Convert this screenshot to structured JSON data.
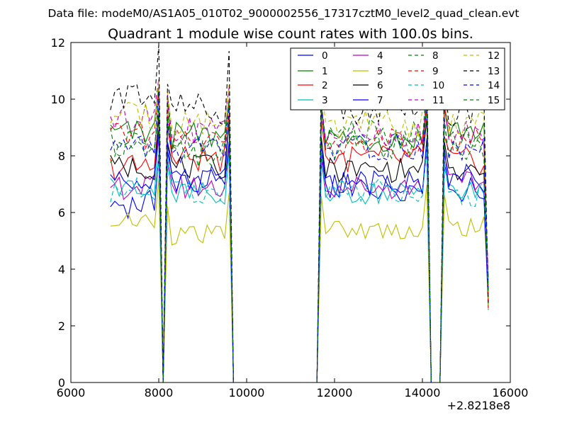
{
  "page": {
    "suptitle": "Data file: modeM0/AS1A05_010T02_9000002556_17317cztM0_level2_quad_clean.evt"
  },
  "chart_data": {
    "type": "line",
    "title": "Quadrant 1 module wise count rates with 100.0s bins.",
    "xlabel": "",
    "ylabel": "",
    "x_offset_label": "+2.8218e8",
    "xlim": [
      6000,
      16000
    ],
    "ylim": [
      0,
      12
    ],
    "x_ticks": [
      6000,
      8000,
      10000,
      12000,
      14000,
      16000
    ],
    "y_ticks": [
      0,
      2,
      4,
      6,
      8,
      10,
      12
    ],
    "x_tick_labels": [
      "6000",
      "8000",
      "10000",
      "12000",
      "14000",
      "16000"
    ],
    "y_tick_labels": [
      "0",
      "2",
      "4",
      "6",
      "8",
      "10",
      "12"
    ],
    "grid": false,
    "legend_position": "top-right",
    "time_segments": [
      {
        "start": 6900,
        "end": 7900
      },
      {
        "start": 8300,
        "end": 9500
      },
      {
        "start": 11800,
        "end": 14000
      },
      {
        "start": 14600,
        "end": 15400
      }
    ],
    "series": [
      {
        "name": "0",
        "color": "#0000ff",
        "dash": "solid",
        "levels": [
          6.3,
          7.2,
          6.9,
          6.8
        ],
        "variation": 0.25
      },
      {
        "name": "1",
        "color": "#008000",
        "dash": "solid",
        "levels": [
          8.8,
          8.7,
          8.6,
          8.9
        ],
        "variation": 0.25
      },
      {
        "name": "2",
        "color": "#ff0000",
        "dash": "solid",
        "levels": [
          7.6,
          7.9,
          7.9,
          7.8
        ],
        "variation": 0.25
      },
      {
        "name": "3",
        "color": "#00bfbf",
        "dash": "solid",
        "levels": [
          6.9,
          6.7,
          6.7,
          6.7
        ],
        "variation": 0.22
      },
      {
        "name": "4",
        "color": "#bf00bf",
        "dash": "solid",
        "levels": [
          6.9,
          6.9,
          6.9,
          7.0
        ],
        "variation": 0.22
      },
      {
        "name": "5",
        "color": "#bfbf00",
        "dash": "solid",
        "levels": [
          5.7,
          5.2,
          5.4,
          5.5
        ],
        "variation": 0.18
      },
      {
        "name": "6",
        "color": "#000000",
        "dash": "solid",
        "levels": [
          7.6,
          7.6,
          7.5,
          7.4
        ],
        "variation": 0.22
      },
      {
        "name": "7",
        "color": "#0000ff",
        "dash": "solid",
        "levels": [
          7.3,
          7.1,
          7.0,
          7.2
        ],
        "variation": 0.25
      },
      {
        "name": "8",
        "color": "#008000",
        "dash": "dashed",
        "levels": [
          8.5,
          8.4,
          8.8,
          8.7
        ],
        "variation": 0.25
      },
      {
        "name": "9",
        "color": "#ff0000",
        "dash": "dashed",
        "levels": [
          8.7,
          8.5,
          8.5,
          8.6
        ],
        "variation": 0.25
      },
      {
        "name": "10",
        "color": "#00bfbf",
        "dash": "dashed",
        "levels": [
          6.8,
          6.7,
          6.8,
          6.6
        ],
        "variation": 0.22
      },
      {
        "name": "11",
        "color": "#bf00bf",
        "dash": "dashed",
        "levels": [
          9.3,
          8.9,
          8.7,
          8.8
        ],
        "variation": 0.25
      },
      {
        "name": "12",
        "color": "#bfbf00",
        "dash": "dashed",
        "levels": [
          9.4,
          9.2,
          9.1,
          9.2
        ],
        "variation": 0.25
      },
      {
        "name": "13",
        "color": "#000000",
        "dash": "dashed",
        "levels": [
          10.1,
          9.7,
          9.7,
          9.6
        ],
        "variation": 0.3
      },
      {
        "name": "14",
        "color": "#0000ff",
        "dash": "dashed",
        "levels": [
          8.3,
          8.2,
          8.3,
          8.2
        ],
        "variation": 0.25
      },
      {
        "name": "15",
        "color": "#008000",
        "dash": "dashed",
        "levels": [
          8.2,
          8.1,
          8.4,
          8.3
        ],
        "variation": 0.25
      }
    ]
  }
}
